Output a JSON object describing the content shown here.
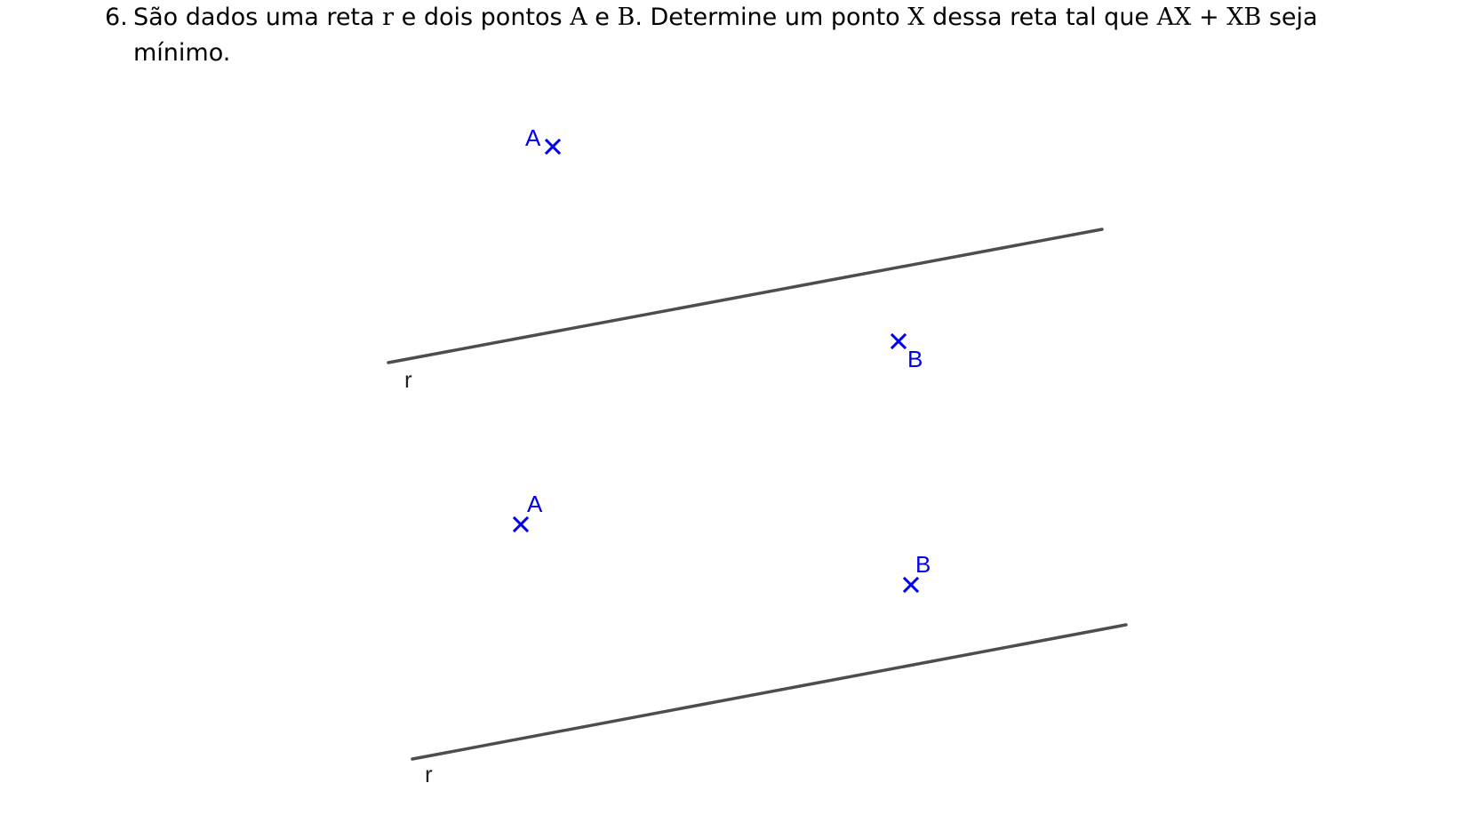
{
  "problem": {
    "number": "6.",
    "text_parts": [
      "São dados uma reta ",
      "r",
      " e dois pontos ",
      "A",
      " e ",
      "B",
      ". Determine um ponto ",
      "X",
      " dessa reta tal que ",
      "AX",
      " + ",
      "XB",
      " seja"
    ],
    "continuation": "mínimo."
  },
  "figures": [
    {
      "line_label": "r",
      "point_a_label": "A",
      "point_b_label": "B"
    },
    {
      "line_label": "r",
      "point_a_label": "A",
      "point_b_label": "B"
    }
  ],
  "colors": {
    "point": "#0000ee",
    "line": "#4d4d4d",
    "text": "#000000"
  }
}
